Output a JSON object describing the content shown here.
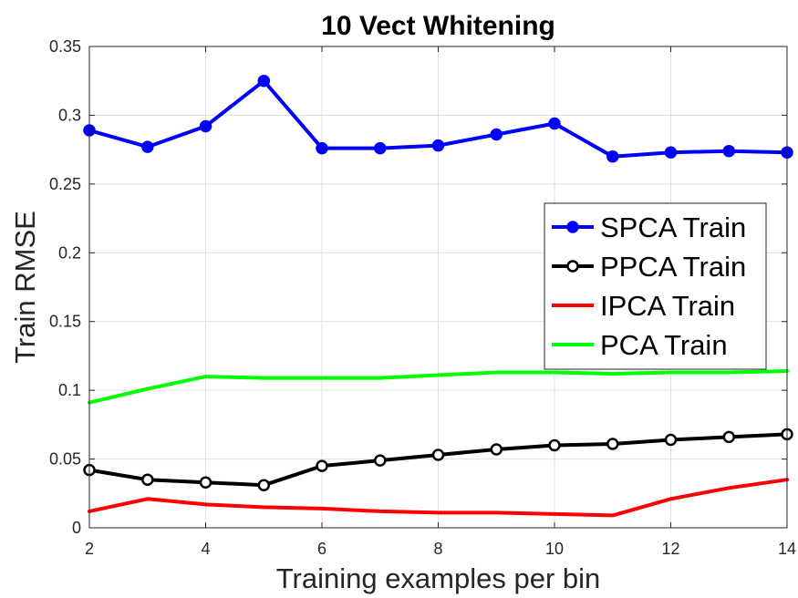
{
  "chart_data": {
    "type": "line",
    "title": "10 Vect Whitening",
    "xlabel": "Training examples per bin",
    "ylabel": "Train RMSE",
    "xlim": [
      2,
      14
    ],
    "ylim": [
      0,
      0.35
    ],
    "x_ticks": [
      "2",
      "4",
      "6",
      "8",
      "10",
      "12",
      "14"
    ],
    "y_ticks": [
      "0",
      "0.05",
      "0.1",
      "0.15",
      "0.2",
      "0.25",
      "0.3",
      "0.35"
    ],
    "grid": true,
    "legend_position": "right",
    "x": [
      2,
      3,
      4,
      5,
      6,
      7,
      8,
      9,
      10,
      11,
      12,
      13,
      14
    ],
    "series": [
      {
        "name": "SPCA Train",
        "color": "#0000ff",
        "marker": "filled-circle",
        "values": [
          0.289,
          0.277,
          0.292,
          0.325,
          0.276,
          0.276,
          0.278,
          0.286,
          0.294,
          0.27,
          0.273,
          0.274,
          0.273
        ]
      },
      {
        "name": "PPCA Train",
        "color": "#000000",
        "marker": "open-circle",
        "values": [
          0.042,
          0.035,
          0.033,
          0.031,
          0.045,
          0.049,
          0.053,
          0.057,
          0.06,
          0.061,
          0.064,
          0.066,
          0.068
        ]
      },
      {
        "name": "IPCA Train",
        "color": "#ff0000",
        "marker": "none",
        "values": [
          0.012,
          0.021,
          0.017,
          0.015,
          0.014,
          0.012,
          0.011,
          0.011,
          0.01,
          0.009,
          0.021,
          0.029,
          0.035
        ]
      },
      {
        "name": "PCA Train",
        "color": "#00ff00",
        "marker": "none",
        "values": [
          0.091,
          0.101,
          0.11,
          0.109,
          0.109,
          0.109,
          0.111,
          0.113,
          0.113,
          0.112,
          0.113,
          0.113,
          0.114
        ]
      }
    ]
  }
}
